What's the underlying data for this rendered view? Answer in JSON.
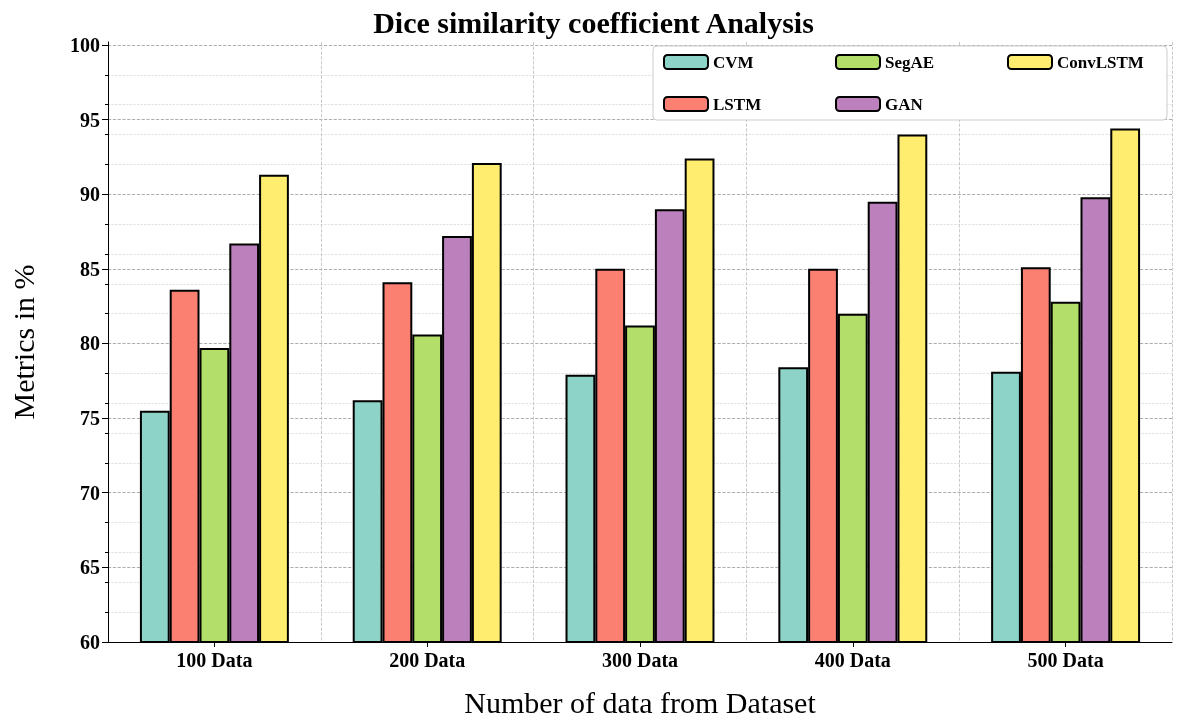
{
  "chart_data": {
    "type": "bar",
    "title": "Dice similarity coefficient Analysis",
    "xlabel": "Number of data from Dataset",
    "ylabel": "Metrics in %",
    "categories": [
      "100 Data",
      "200 Data",
      "300 Data",
      "400 Data",
      "500 Data"
    ],
    "series": [
      {
        "name": "CVM",
        "color": "#8dd3c7",
        "values": [
          75.5,
          76.2,
          77.9,
          78.4,
          78.1
        ]
      },
      {
        "name": "LSTM",
        "color": "#fb8072",
        "values": [
          83.6,
          84.1,
          85.0,
          85.0,
          85.1
        ]
      },
      {
        "name": "SegAE",
        "color": "#b3de69",
        "values": [
          79.7,
          80.6,
          81.2,
          82.0,
          82.8
        ]
      },
      {
        "name": "GAN",
        "color": "#bc80bd",
        "values": [
          86.7,
          87.2,
          89.0,
          89.5,
          89.8
        ]
      },
      {
        "name": "ConvLSTM",
        "color": "#ffed6f",
        "values": [
          91.3,
          92.1,
          92.4,
          94.0,
          94.4
        ]
      }
    ],
    "ylim": [
      60,
      100.2
    ],
    "yticks": [
      60,
      65,
      70,
      75,
      80,
      85,
      90,
      95,
      100
    ],
    "grid": true,
    "legend": "top right"
  }
}
